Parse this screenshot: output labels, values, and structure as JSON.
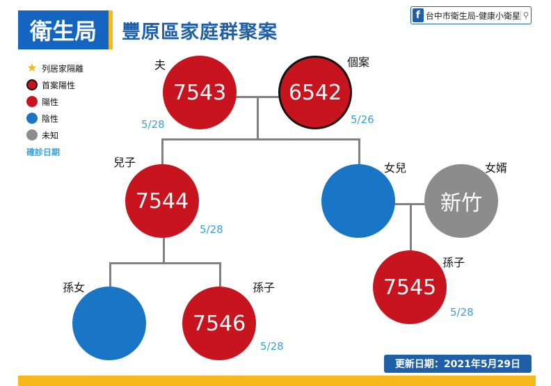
{
  "header": {
    "badge": "衛生局",
    "title": "豐原區家庭群聚案"
  },
  "facebook": {
    "logo": "f",
    "text": "台中市衛生局-健康小衛星",
    "search_glyph": "⚲"
  },
  "legend": {
    "items": [
      {
        "label": "列居家隔離",
        "icon": "star"
      },
      {
        "label": "首案陽性",
        "color": "#c8141e",
        "outline": "#111111"
      },
      {
        "label": "陽性",
        "color": "#c8141e"
      },
      {
        "label": "陰性",
        "color": "#1976c6"
      },
      {
        "label": "未知",
        "color": "#8c8c8c"
      }
    ],
    "date_label": "確診日期"
  },
  "nodes": {
    "husband": {
      "relation": "夫",
      "id": "7543",
      "date": "5/28"
    },
    "index": {
      "relation": "個案",
      "id": "6542",
      "date": "5/26"
    },
    "son": {
      "relation": "兒子",
      "id": "7544",
      "date": "5/28"
    },
    "daughter": {
      "relation": "女兒",
      "id": ""
    },
    "son_in_law": {
      "relation": "女婿",
      "id": "新竹"
    },
    "grandson_b": {
      "relation": "孫子",
      "id": "7545",
      "date": "5/28"
    },
    "granddaughter": {
      "relation": "孫女",
      "id": ""
    },
    "grandson_a": {
      "relation": "孫子",
      "id": "7546",
      "date": "5/28"
    }
  },
  "update": {
    "text": "更新日期：2021年5月29日"
  },
  "colors": {
    "positive": "#c8141e",
    "negative": "#1976c6",
    "unknown": "#8c8c8c",
    "brand": "#1f5fa8",
    "accent": "#f6b81a"
  }
}
